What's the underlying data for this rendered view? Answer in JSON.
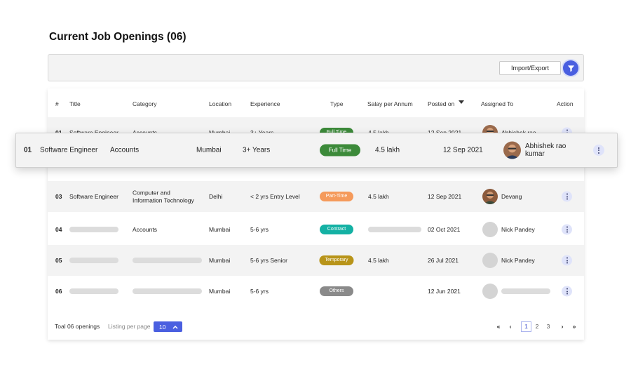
{
  "page_title": "Current Job Openings (06)",
  "toolbar": {
    "import_export_label": "Import/Export",
    "filter_icon": "filter-icon"
  },
  "colors": {
    "accent": "#4a5fe0",
    "full_time": "#3c8a3a",
    "part_time": "#f59a5b",
    "contract": "#14b1a4",
    "temporary": "#b89419",
    "others": "#8a8a8a"
  },
  "table": {
    "headers": {
      "num": "#",
      "title": "Title",
      "category": "Category",
      "location": "Location",
      "experience": "Experience",
      "type": "Type",
      "salary": "Salay per Annum",
      "posted": "Posted on",
      "assigned": "Assigned To",
      "action": "Action"
    },
    "rows": [
      {
        "num": "01",
        "title": "Software Engineer",
        "category": "Accounts",
        "location": "Mumbai",
        "experience": "3+ Years",
        "type": "Full Time",
        "salary": "4.5 lakh",
        "posted": "12 Sep 2021",
        "assigned": "Abhishek rao"
      },
      {
        "num": "03",
        "title": "Software Engineer",
        "category_line1": "Computer and",
        "category_line2": "Information Technology",
        "location": "Delhi",
        "experience": "< 2 yrs Entry Level",
        "type": "Part-Time",
        "salary": "4.5 lakh",
        "posted": "12 Sep 2021",
        "assigned": "Devang"
      },
      {
        "num": "04",
        "category": "Accounts",
        "location": "Mumbai",
        "experience": "5-6 yrs",
        "type": "Contract",
        "posted": "02 Oct 2021",
        "assigned": "Nick Pandey"
      },
      {
        "num": "05",
        "location": "Mumbai",
        "experience": "5-6 yrs Senior",
        "type": "Temporary",
        "salary": "4.5 lakh",
        "posted": "26 Jul 2021",
        "assigned": "Nick Pandey"
      },
      {
        "num": "06",
        "location": "Mumbai",
        "experience": "5-6 yrs",
        "type": "Others",
        "posted": "12 Jun 2021"
      }
    ]
  },
  "highlighted_row": {
    "num": "01",
    "title": "Software Engineer",
    "category": "Accounts",
    "location": "Mumbai",
    "experience": "3+ Years",
    "type": "Full Time",
    "salary": "4.5 lakh",
    "posted": "12 Sep 2021",
    "assigned_line1": "Abhishek rao",
    "assigned_line2": "kumar"
  },
  "footer": {
    "total": "Toal 06 openings",
    "listing_label": "Listing per page",
    "per_page": "10",
    "first": "«",
    "prev": "‹",
    "pages": [
      "1",
      "2",
      "3"
    ],
    "current_page": "1",
    "next": "›",
    "last": "»"
  }
}
